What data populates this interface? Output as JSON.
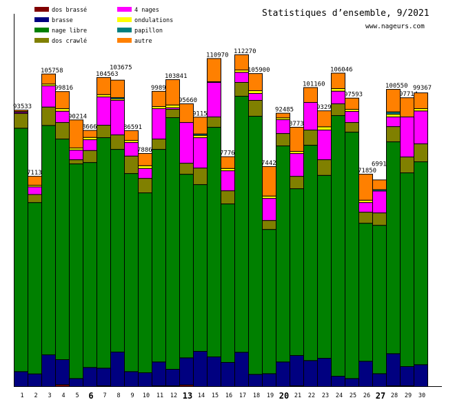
{
  "chart_data": {
    "type": "bar",
    "stacked": true,
    "title": "Statistiques d’ensemble, 9/2021",
    "subtitle": "www.nageurs.com",
    "xlabel": "",
    "ylabel": "",
    "ylim": [
      0,
      126000
    ],
    "grid": false,
    "legend_position": "top-left",
    "categories": [
      "1",
      "2",
      "3",
      "4",
      "5",
      "6",
      "7",
      "8",
      "9",
      "10",
      "11",
      "12",
      "13",
      "14",
      "15",
      "16",
      "17",
      "18",
      "19",
      "20",
      "21",
      "22",
      "23",
      "24",
      "25",
      "26",
      "27",
      "28",
      "29",
      "30"
    ],
    "bold_categories": [
      "6",
      "13",
      "20",
      "27"
    ],
    "totals": [
      93533,
      71138,
      105758,
      99816,
      90214,
      86660,
      104563,
      103675,
      86591,
      78864,
      99898,
      103841,
      95660,
      91152,
      110970,
      77767,
      112270,
      105900,
      74422,
      92485,
      87737,
      101160,
      93297,
      106046,
      97593,
      71850,
      69916,
      100550,
      97714,
      99367
    ],
    "series": [
      {
        "name": "dos brassé",
        "color": "#800000",
        "values": [
          0,
          0,
          0,
          620,
          0,
          0,
          230,
          0,
          0,
          0,
          230,
          230,
          540,
          0,
          0,
          0,
          0,
          0,
          0,
          0,
          230,
          0,
          0,
          0,
          0,
          0,
          0,
          230,
          230,
          0
        ]
      },
      {
        "name": "brasse",
        "color": "#000080",
        "values": [
          5060,
          4280,
          10740,
          8480,
          2720,
          6460,
          6000,
          11680,
          5060,
          4670,
          8100,
          5610,
          9180,
          11910,
          10040,
          8170,
          11600,
          4130,
          4360,
          8330,
          10280,
          8800,
          9570,
          3500,
          2720,
          8560,
          4360,
          10900,
          6540,
          7400
        ]
      },
      {
        "name": "nage libre",
        "color": "#008000",
        "values": [
          82350,
          57980,
          77600,
          74650,
          72620,
          69350,
          77990,
          68570,
          67020,
          60870,
          71920,
          85150,
          62110,
          56430,
          77680,
          53630,
          86630,
          87330,
          48800,
          73090,
          56430,
          72850,
          61880,
          88190,
          83360,
          46700,
          50200,
          71680,
          65540,
          68650
        ]
      },
      {
        "name": "dos crawlé",
        "color": "#808000",
        "values": [
          4980,
          2720,
          6230,
          5600,
          1400,
          4050,
          4200,
          4900,
          5910,
          4900,
          3500,
          2800,
          3740,
          5600,
          3500,
          4440,
          4670,
          5370,
          3040,
          4200,
          4200,
          5140,
          5300,
          3970,
          3270,
          3740,
          4200,
          5140,
          5370,
          6070
        ]
      },
      {
        "name": "4 nages",
        "color": "#ff00ff",
        "values": [
          400,
          2570,
          7160,
          3810,
          3270,
          3660,
          9570,
          11680,
          4590,
          3350,
          10270,
          540,
          13780,
          10270,
          11680,
          6770,
          3420,
          2340,
          7470,
          4670,
          7710,
          9340,
          10040,
          4280,
          3740,
          3270,
          7390,
          3270,
          13540,
          11130
        ]
      },
      {
        "name": "ondulations",
        "color": "#ffff00",
        "values": [
          250,
          540,
          620,
          860,
          700,
          780,
          780,
          470,
          700,
          930,
          700,
          930,
          0,
          780,
          230,
          780,
          780,
          930,
          780,
          620,
          700,
          0,
          1090,
          860,
          700,
          780,
          0,
          930,
          0,
          780
        ]
      },
      {
        "name": "papillon",
        "color": "#008080",
        "values": [
          0,
          0,
          0,
          0,
          0,
          0,
          0,
          470,
          0,
          0,
          0,
          0,
          0,
          470,
          0,
          0,
          0,
          0,
          0,
          0,
          0,
          0,
          0,
          0,
          0,
          0,
          470,
          780,
          0,
          0
        ]
      },
      {
        "name": "autre",
        "color": "#ff8000",
        "values": [
          493,
          3048,
          3408,
          5796,
          9504,
          2360,
          5793,
          5905,
          3311,
          4144,
          5178,
          8581,
          6310,
          5692,
          7840,
          3977,
          5170,
          5800,
          9972,
          1575,
          8187,
          5030,
          5417,
          5246,
          3803,
          8800,
          3296,
          7620,
          6494,
          5337
        ]
      }
    ]
  }
}
